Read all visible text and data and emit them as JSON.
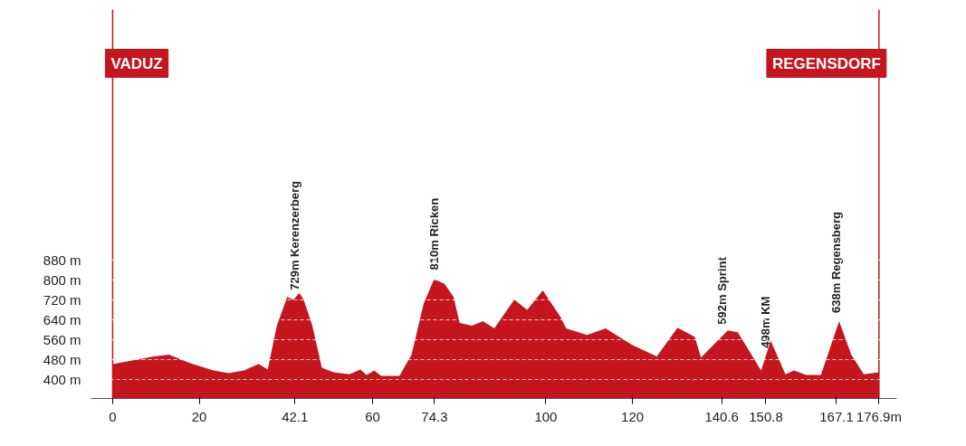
{
  "chart_data": {
    "type": "area",
    "x": [
      0,
      9.5,
      13,
      17.8,
      23.3,
      26.8,
      30.3,
      33.7,
      35.8,
      37.9,
      40.3,
      41.7,
      43.1,
      44.1,
      46.1,
      48.3,
      51,
      54.6,
      57.2,
      58.6,
      60.4,
      62,
      66.2,
      69,
      71.8,
      74.2,
      76.6,
      78.7,
      80.1,
      82.9,
      85.5,
      88.1,
      92.7,
      95.7,
      99.3,
      103.3,
      104.7,
      109.5,
      113.8,
      120,
      125.6,
      130.4,
      134.4,
      135.8,
      142,
      144.3,
      149.7,
      151.9,
      155.3,
      157.3,
      160.1,
      163.5,
      167.7,
      170.5,
      173.4,
      176.9
    ],
    "series": [
      {
        "color": "#c4161c",
        "values": [
          462,
          493,
          500,
          467,
          437,
          426,
          437,
          463,
          441,
          616,
          731,
          720,
          746,
          720,
          616,
          448,
          430,
          422,
          441,
          419,
          437,
          415,
          415,
          500,
          705,
          802,
          783,
          731,
          627,
          616,
          634,
          605,
          720,
          679,
          757,
          653,
          605,
          579,
          605,
          538,
          493,
          608,
          571,
          489,
          597,
          590,
          437,
          556,
          422,
          437,
          419,
          419,
          634,
          500,
          422,
          430
        ]
      }
    ],
    "xlim": [
      -5,
      181
    ],
    "ylim": [
      325,
      1880
    ],
    "xticks": [
      {
        "value": 0,
        "label": "0"
      },
      20,
      42.1,
      60,
      74.3,
      100,
      120,
      140.6,
      150.8,
      167.1,
      {
        "value": 176.9,
        "label": "176.9m"
      }
    ],
    "yticks": [
      {
        "value": 400,
        "label": "400 m"
      },
      {
        "value": 480,
        "label": "480 m"
      },
      {
        "value": 560,
        "label": "560 m"
      },
      {
        "value": 640,
        "label": "640 m"
      },
      {
        "value": 720,
        "label": "720 m"
      },
      {
        "value": 800,
        "label": "800 m"
      },
      {
        "value": 880,
        "label": "880 m"
      }
    ],
    "grid": "y",
    "ref_lines": [
      {
        "axis": "x",
        "value": 0,
        "label": "VADUZ",
        "color": "#c4161c"
      },
      {
        "axis": "x",
        "value": 176.9,
        "label": "REGENSDORF",
        "color": "#c4161c"
      }
    ],
    "annotations": [
      {
        "text": "729m Kerenzerberg",
        "x": 42.1,
        "y": 729
      },
      {
        "text": "810m Ricken",
        "x": 74.3,
        "y": 810
      },
      {
        "text": "592m Sprint",
        "x": 140.6,
        "y": 592
      },
      {
        "text": "498m KM",
        "x": 150.8,
        "y": 498
      },
      {
        "text": "638m Regensberg",
        "x": 167.1,
        "y": 638
      }
    ]
  }
}
